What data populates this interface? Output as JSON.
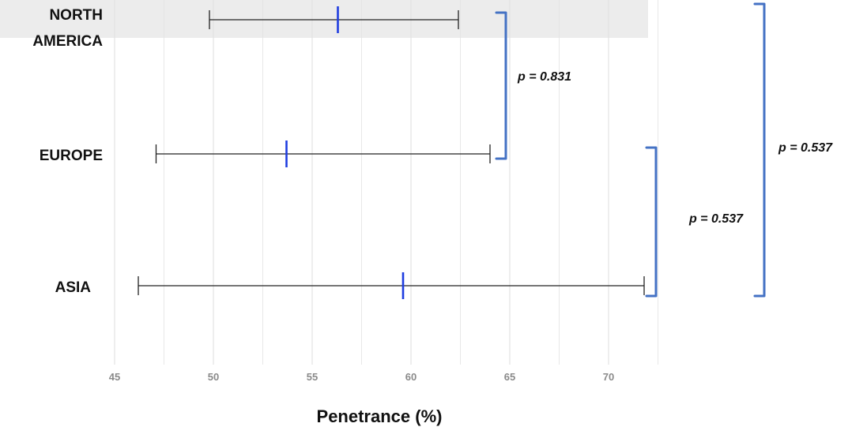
{
  "chart_data": {
    "type": "forest",
    "xlabel": "Penetrance (%)",
    "xlim": [
      45,
      72
    ],
    "xticks": [
      45,
      50,
      55,
      60,
      65,
      70
    ],
    "grid": true,
    "categories": [
      {
        "label_lines": [
          "NORTH",
          "AMERICA"
        ],
        "estimate": 56.3,
        "lower": 49.8,
        "upper": 62.4
      },
      {
        "label_lines": [
          "EUROPE"
        ],
        "estimate": 53.7,
        "lower": 47.1,
        "upper": 64.0
      },
      {
        "label_lines": [
          "ASIA"
        ],
        "estimate": 59.6,
        "lower": 46.2,
        "upper": 71.8
      }
    ],
    "comparisons": [
      {
        "pair": [
          "NORTH AMERICA",
          "EUROPE"
        ],
        "label": "p = 0.831"
      },
      {
        "pair": [
          "EUROPE",
          "ASIA"
        ],
        "label": "p = 0.537"
      },
      {
        "pair": [
          "NORTH AMERICA",
          "ASIA"
        ],
        "label": "p = 0.537"
      }
    ],
    "colors": {
      "estimate": "#1f3de0",
      "interval": "#222222",
      "bracket": "#4472c4",
      "grid": "#e3e3e3",
      "band": "#ececec"
    }
  }
}
